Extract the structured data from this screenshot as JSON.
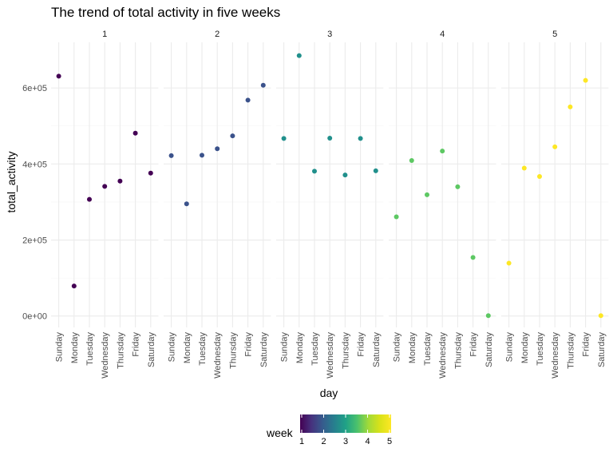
{
  "chart_data": {
    "type": "scatter",
    "title": "The trend of total activity in five weeks",
    "xlabel": "day",
    "ylabel": "total_activity",
    "facet_variable": "week",
    "categories": [
      "Sunday",
      "Monday",
      "Tuesday",
      "Wednesday",
      "Thursday",
      "Friday",
      "Saturday"
    ],
    "yticks": [
      0,
      200000,
      400000,
      600000
    ],
    "ytick_labels": [
      "0e+00",
      "2e+05",
      "4e+05",
      "6e+05"
    ],
    "ylim": [
      -30000,
      720000
    ],
    "grid": true,
    "facets": [
      {
        "label": "1",
        "week": 1,
        "values": [
          631000,
          79000,
          307000,
          341000,
          355000,
          481000,
          376000
        ]
      },
      {
        "label": "2",
        "week": 2,
        "values": [
          422000,
          295000,
          423000,
          440000,
          474000,
          568000,
          607000
        ]
      },
      {
        "label": "3",
        "week": 3,
        "values": [
          467000,
          685000,
          381000,
          468000,
          371000,
          467000,
          382000
        ]
      },
      {
        "label": "4",
        "week": 4,
        "values": [
          261000,
          409000,
          319000,
          434000,
          340000,
          154000,
          1000
        ]
      },
      {
        "label": "5",
        "week": 5,
        "values": [
          139000,
          389000,
          367000,
          445000,
          550000,
          620000,
          1000
        ]
      }
    ],
    "legend": {
      "title": "week",
      "position": "bottom",
      "ticks": [
        "1",
        "2",
        "3",
        "4",
        "5"
      ],
      "colormap": "viridis"
    },
    "colors": {
      "week_1": "#440154",
      "week_2": "#3b528b",
      "week_3": "#21908c",
      "week_4": "#5dc863",
      "week_5": "#fde725",
      "grid_major": "#ebebeb",
      "grid_minor": "#f5f5f5"
    }
  }
}
